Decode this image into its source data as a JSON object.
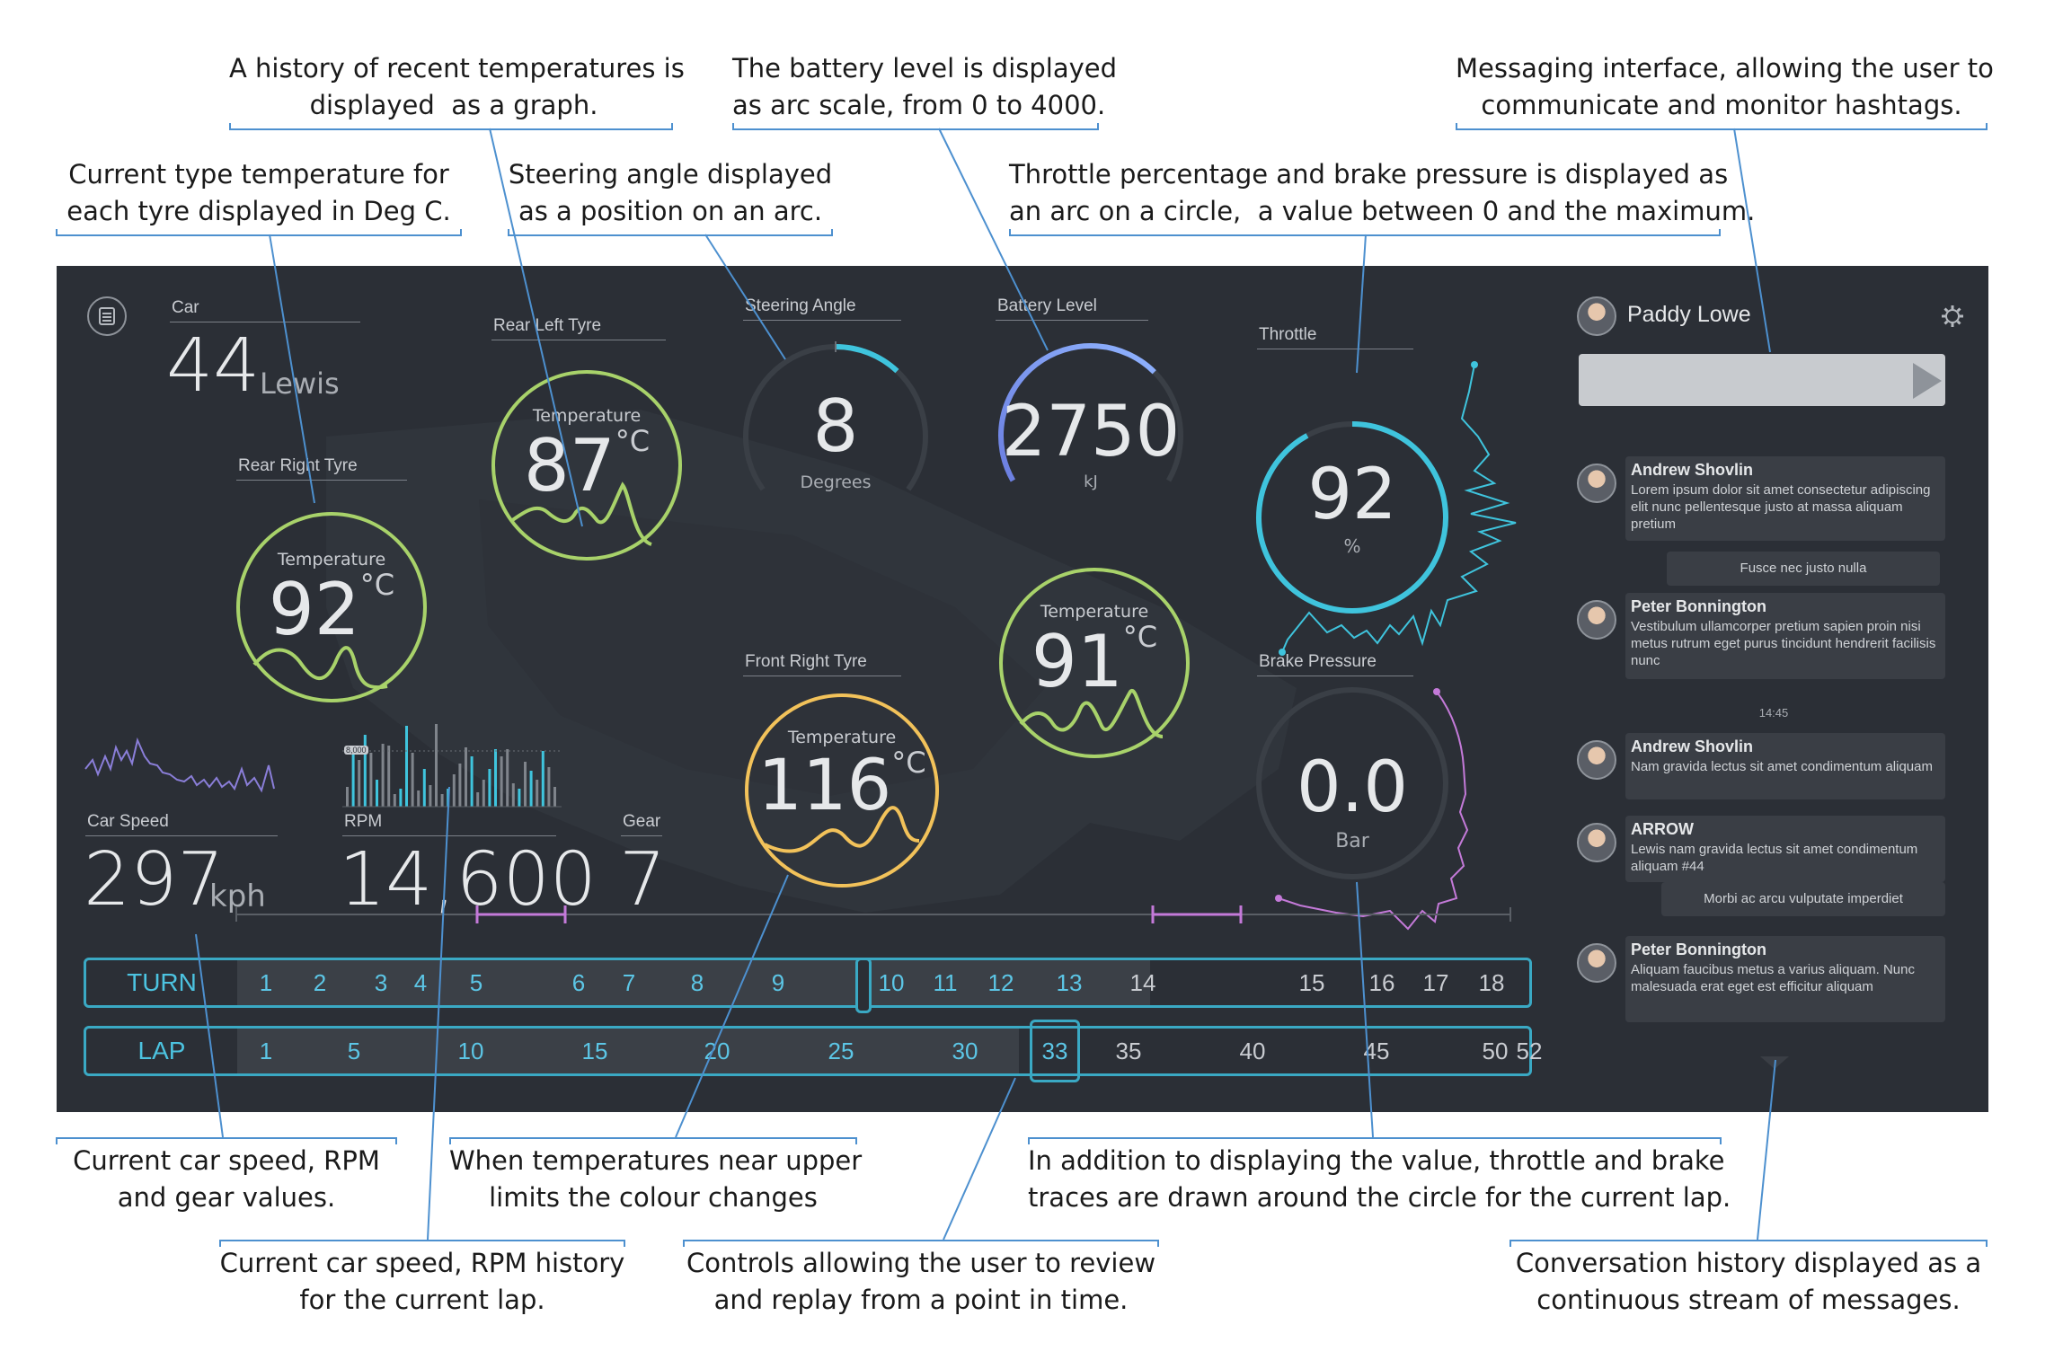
{
  "annotations": {
    "temp_history": "A history of recent temperatures is\ndisplayed  as a graph.",
    "battery": "The battery level is displayed\nas arc scale, from 0 to 4000.",
    "messaging": "Messaging interface, allowing the user to\ncommunicate and monitor hashtags.",
    "tyre_temp": "Current type temperature for\neach tyre displayed in Deg C.",
    "steering": "Steering angle displayed\nas a position on an arc.",
    "throttle": "Throttle percentage and brake pressure is displayed as\nan arc on a circle,  a value between 0 and the maximum.",
    "speed_values": "Current car speed, RPM\nand gear values.",
    "temp_colour": "When temperatures near upper\nlimits the colour changes",
    "traces": "In addition to displaying the value, throttle and brake\ntraces are drawn around the circle for the current lap.",
    "rpm_history": "Current car speed, RPM history\nfor the current lap.",
    "controls": "Controls allowing the user to review\nand replay from a point in time.",
    "conversation": "Conversation history displayed as a\ncontinuous stream of messages."
  },
  "dashboard": {
    "car": {
      "label": "Car",
      "number": "44",
      "driver": "Lewis"
    },
    "rear_right": {
      "label": "Rear Right Tyre",
      "sub": "Temperature",
      "value": "92",
      "unit": "°C",
      "color": "#a8d26a"
    },
    "rear_left": {
      "label": "Rear Left Tyre",
      "sub": "Temperature",
      "value": "87",
      "unit": "°C",
      "color": "#a8d26a"
    },
    "front_right": {
      "label": "Front Right Tyre",
      "sub": "Temperature",
      "value": "116",
      "unit": "°C",
      "color": "#f2c25a"
    },
    "front_left": {
      "sub": "Temperature",
      "value": "91",
      "unit": "°C",
      "color": "#a8d26a"
    },
    "steering": {
      "label": "Steering Angle",
      "value": "8",
      "unit": "Degrees",
      "level": 0.06
    },
    "battery": {
      "label": "Battery Level",
      "value": "2750",
      "unit": "kJ",
      "min": 0,
      "max": 4000,
      "level": 0.6875
    },
    "throttle": {
      "label": "Throttle",
      "value": "92",
      "unit": "%",
      "level": 0.92,
      "color": "#3fc4dd"
    },
    "brake": {
      "label": "Brake Pressure",
      "value": "0.0",
      "unit": "Bar",
      "level": 0.0,
      "color": "#c47ad9"
    },
    "speed": {
      "label": "Car Speed",
      "value": "297",
      "unit": "kph"
    },
    "rpm": {
      "label": "RPM",
      "value": "14,600",
      "marker": "8,000"
    },
    "gear": {
      "label": "Gear",
      "value": "7"
    },
    "turn": {
      "label": "TURN",
      "ticks": [
        "1",
        "2",
        "3",
        "4",
        "5",
        "6",
        "7",
        "8",
        "9",
        "10",
        "11",
        "12",
        "13",
        "14",
        "15",
        "16",
        "17",
        "18"
      ],
      "current": "13"
    },
    "lap": {
      "label": "LAP",
      "ticks": [
        "1",
        "5",
        "10",
        "15",
        "20",
        "25",
        "30",
        "33",
        "35",
        "40",
        "45",
        "50",
        "52"
      ],
      "current": "33"
    }
  },
  "chat": {
    "user": "Paddy Lowe",
    "messages": [
      {
        "who": "Andrew Shovlin",
        "text": "Lorem ipsum dolor sit amet consectetur adipiscing elit nunc pellentesque justo at massa aliquam pretium"
      },
      {
        "pill": "Fusce nec justo nulla"
      },
      {
        "who": "Peter Bonnington",
        "text": "Vestibulum ullamcorper pretium sapien proin nisi metus rutrum eget purus tincidunt hendrerit facilisis nunc"
      },
      {
        "time": "14:45"
      },
      {
        "who": "Andrew Shovlin",
        "text": "Nam gravida lectus sit amet condimentum aliquam"
      },
      {
        "who": "ARROW",
        "text": "Lewis nam gravida lectus sit amet condimentum aliquam #44"
      },
      {
        "pill": "Morbi ac arcu vulputate imperdiet"
      },
      {
        "who": "Peter Bonnington",
        "text": "Aliquam faucibus metus a varius aliquam. Nunc malesuada erat eget est efficitur aliquam"
      }
    ]
  }
}
